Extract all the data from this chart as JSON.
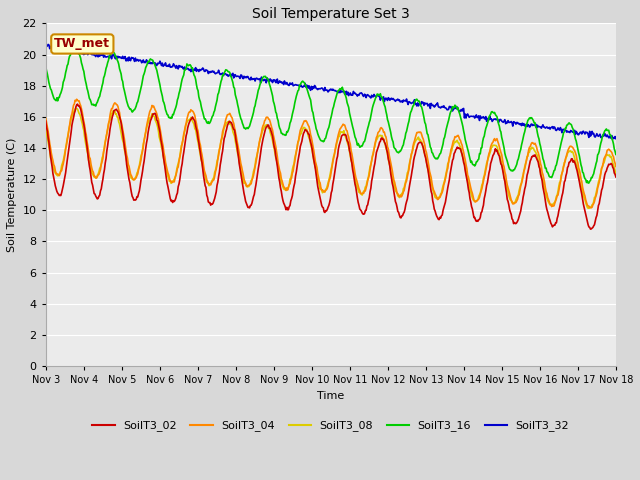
{
  "title": "Soil Temperature Set 3",
  "xlabel": "Time",
  "ylabel": "Soil Temperature (C)",
  "ylim": [
    0,
    22
  ],
  "yticks": [
    0,
    2,
    4,
    6,
    8,
    10,
    12,
    14,
    16,
    18,
    20,
    22
  ],
  "fig_bg_color": "#d8d8d8",
  "plot_bg_color": "#ebebeb",
  "annotation_text": "TW_met",
  "annotation_bg": "#ffffcc",
  "annotation_border": "#cc8800",
  "annotation_text_color": "#990000",
  "x_tick_labels": [
    "Nov 3",
    "Nov 4",
    "Nov 5",
    "Nov 6",
    "Nov 7",
    "Nov 8",
    "Nov 9",
    "Nov 10",
    "Nov 11",
    "Nov 12",
    "Nov 13",
    "Nov 14",
    "Nov 15",
    "Nov 16",
    "Nov 17",
    "Nov 18"
  ],
  "series": {
    "SoilT3_02": {
      "color": "#cc0000",
      "linewidth": 1.2
    },
    "SoilT3_04": {
      "color": "#ff8800",
      "linewidth": 1.2
    },
    "SoilT3_08": {
      "color": "#ddcc00",
      "linewidth": 1.2
    },
    "SoilT3_16": {
      "color": "#00cc00",
      "linewidth": 1.2
    },
    "SoilT3_32": {
      "color": "#0000cc",
      "linewidth": 1.2
    }
  },
  "legend_order": [
    "SoilT3_02",
    "SoilT3_04",
    "SoilT3_08",
    "SoilT3_16",
    "SoilT3_32"
  ]
}
